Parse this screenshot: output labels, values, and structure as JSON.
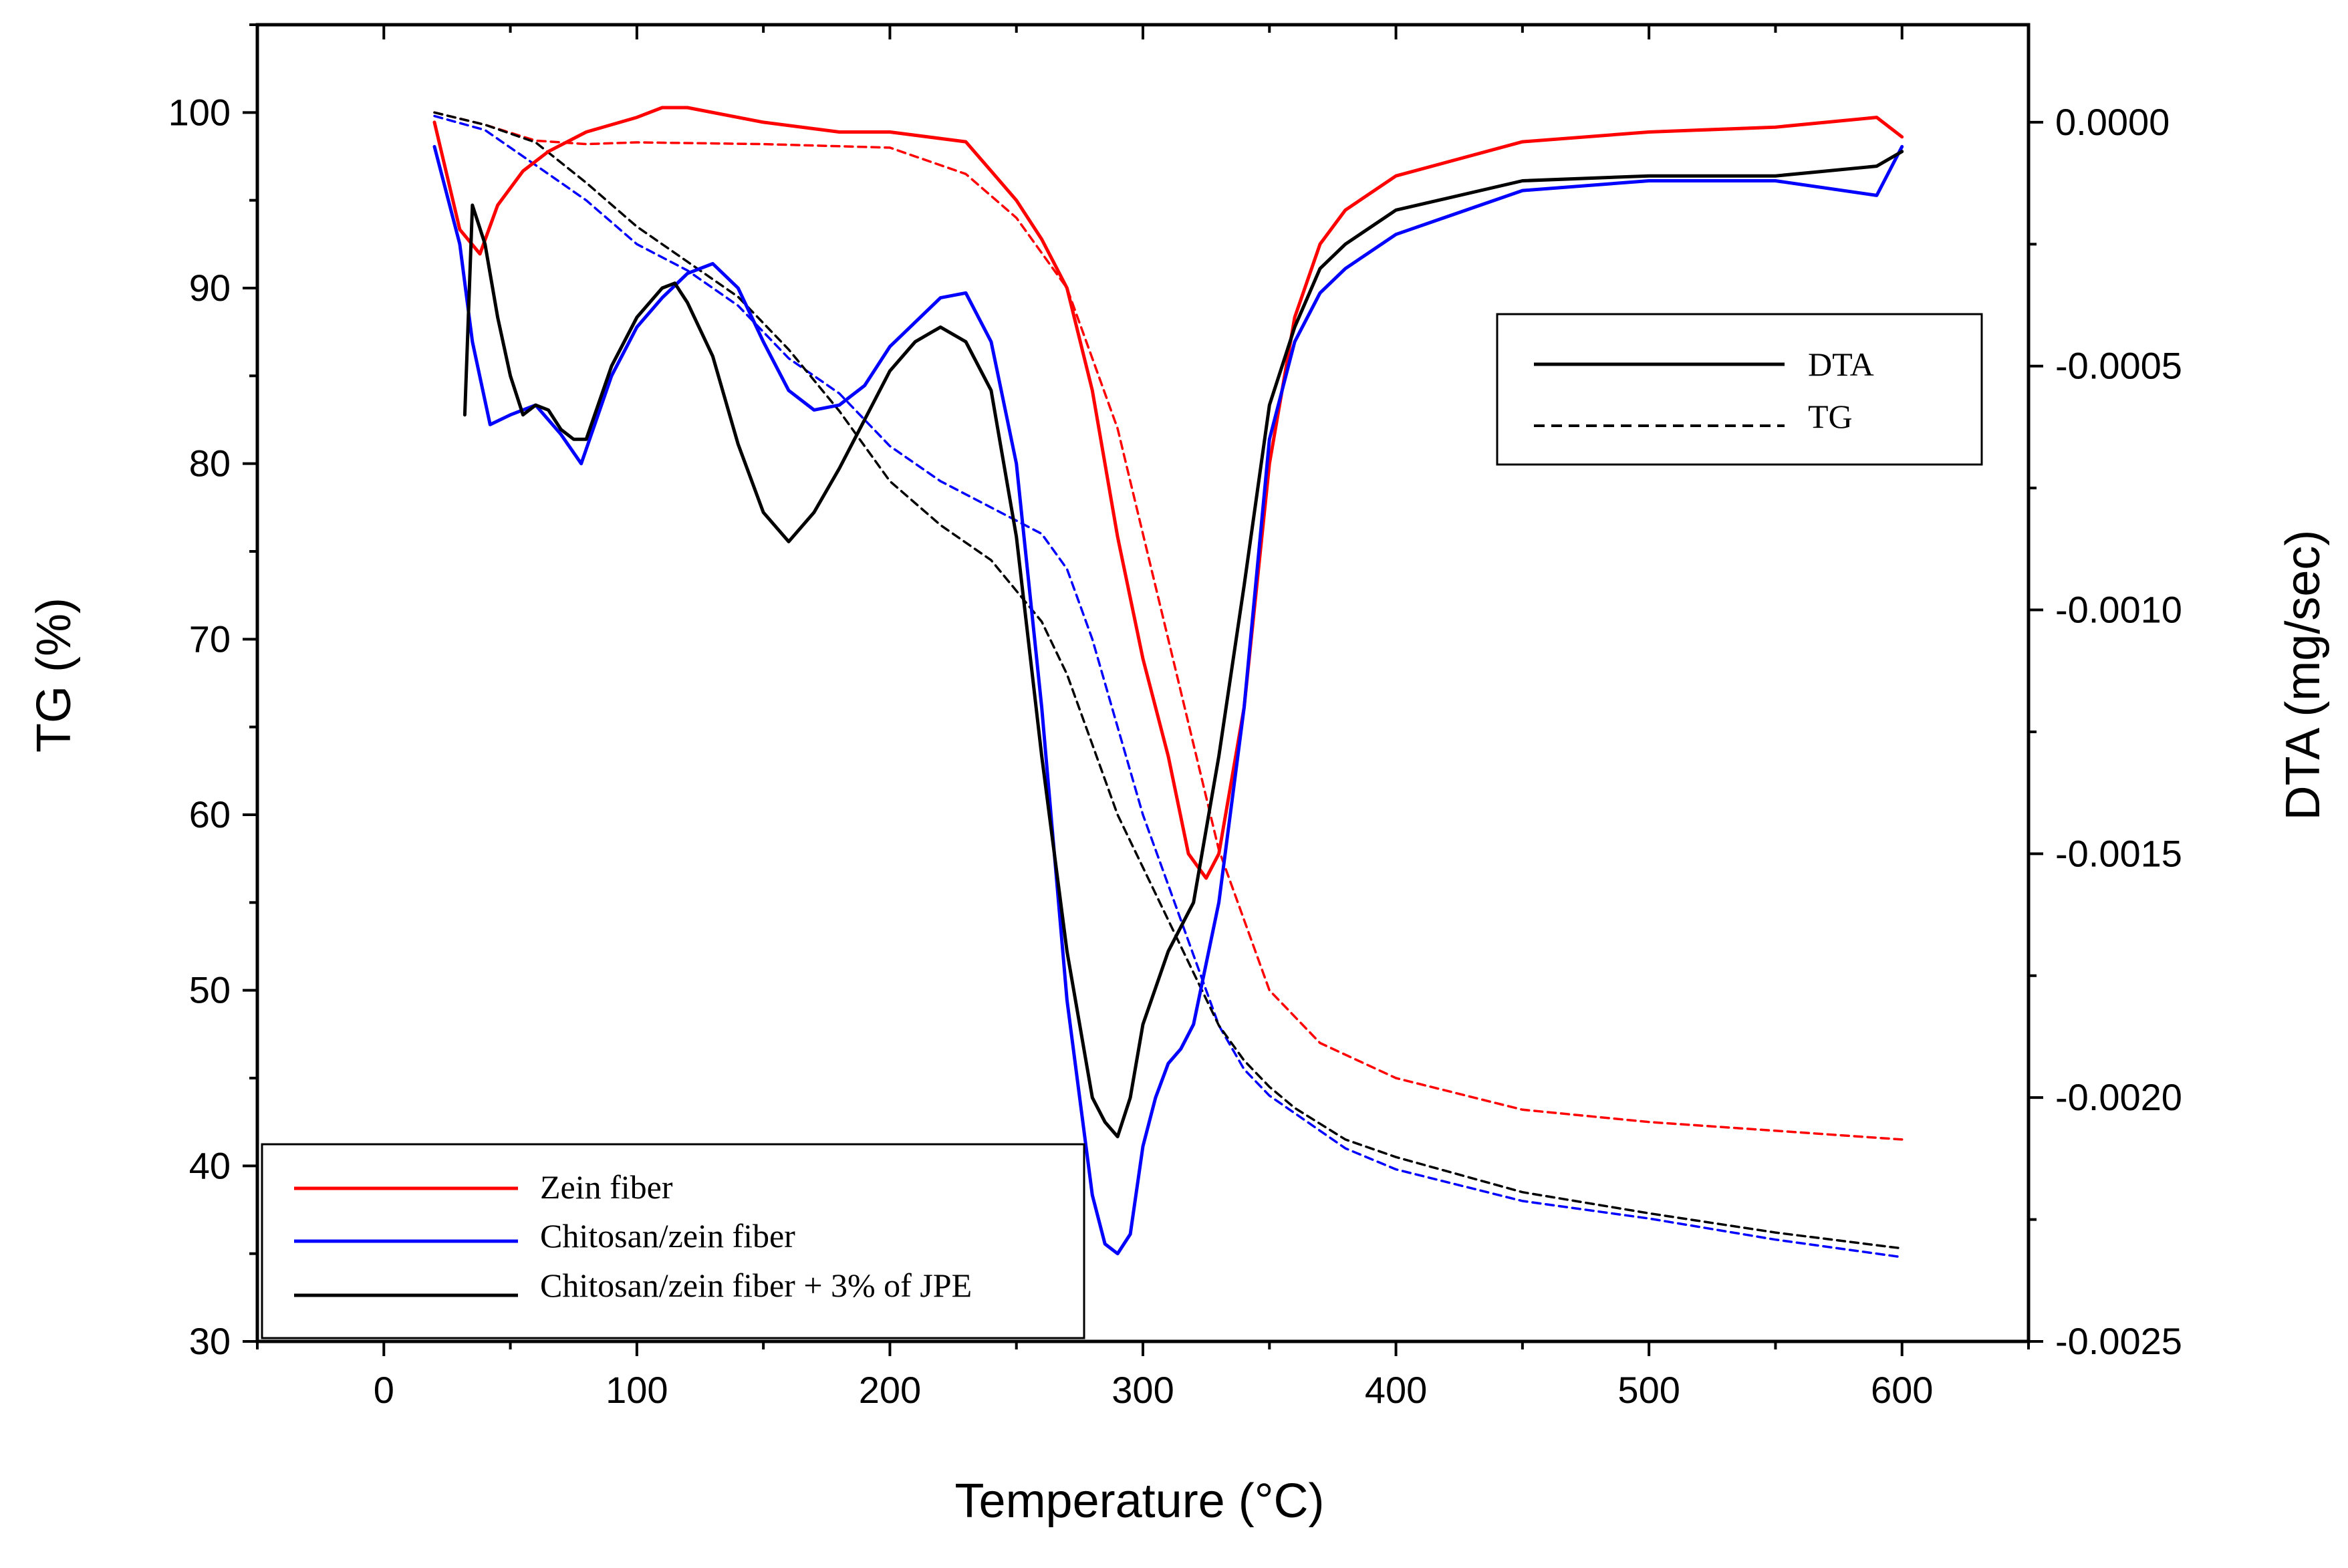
{
  "chart_data": {
    "type": "line",
    "xlabel": "Temperature (°C)",
    "ylabel_left": "TG (%)",
    "ylabel_right": "DTA (mg/sec)",
    "xlim": [
      -50,
      650
    ],
    "ylim_left": [
      30,
      105
    ],
    "ylim_right": [
      -0.0025,
      0.0002
    ],
    "x_ticks": [
      0,
      100,
      200,
      300,
      400,
      500,
      600
    ],
    "x_tick_labels": [
      "0",
      "100",
      "200",
      "300",
      "400",
      "500",
      "600"
    ],
    "y_left_ticks": [
      30,
      40,
      50,
      60,
      70,
      80,
      90,
      100
    ],
    "y_left_tick_labels": [
      "30",
      "40",
      "50",
      "60",
      "70",
      "80",
      "90",
      "100"
    ],
    "y_right_ticks": [
      0.0,
      -0.0005,
      -0.001,
      -0.0015,
      -0.002,
      -0.0025
    ],
    "y_right_tick_labels": [
      "0.0000",
      "-0.0005",
      "-0.0010",
      "-0.0015",
      "-0.0020",
      "-0.0025"
    ],
    "legend_samples": {
      "position": "bottom-left",
      "entries": [
        {
          "label": "Zein fiber",
          "color": "#ff0000"
        },
        {
          "label": "Chitosan/zein fiber",
          "color": "#0000ff"
        },
        {
          "label": "Chitosan/zein fiber + 3% of JPE",
          "color": "#000000"
        }
      ]
    },
    "legend_types": {
      "position": "top-right",
      "entries": [
        {
          "label": "DTA",
          "style": "solid"
        },
        {
          "label": "TG",
          "style": "dashed"
        }
      ]
    },
    "series": [
      {
        "name": "Zein fiber TG",
        "kind": "TG",
        "axis": "left",
        "color": "#ff0000",
        "x": [
          20,
          40,
          60,
          80,
          100,
          150,
          200,
          230,
          250,
          270,
          290,
          310,
          330,
          350,
          370,
          400,
          450,
          500,
          550,
          600
        ],
        "y": [
          100,
          99.3,
          98.4,
          98.2,
          98.3,
          98.2,
          98,
          96.5,
          94,
          90,
          82,
          70,
          58,
          50,
          47,
          45,
          43.2,
          42.5,
          42,
          41.5
        ]
      },
      {
        "name": "Chitosan/zein fiber TG",
        "kind": "TG",
        "axis": "left",
        "color": "#0000ff",
        "x": [
          20,
          40,
          60,
          80,
          100,
          120,
          140,
          160,
          180,
          200,
          220,
          240,
          260,
          270,
          280,
          290,
          300,
          310,
          320,
          330,
          340,
          350,
          360,
          380,
          400,
          450,
          500,
          550,
          600
        ],
        "y": [
          99.8,
          99,
          97,
          95,
          92.5,
          91,
          89,
          86,
          84,
          81,
          79,
          77.5,
          76,
          74,
          70,
          65,
          60,
          56,
          52,
          48,
          45.5,
          44,
          43,
          41,
          39.8,
          38,
          37,
          35.8,
          34.8
        ]
      },
      {
        "name": "Chitosan/zein fiber + 3% of JPE TG",
        "kind": "TG",
        "axis": "left",
        "color": "#000000",
        "x": [
          20,
          40,
          60,
          80,
          100,
          120,
          140,
          160,
          180,
          200,
          220,
          240,
          260,
          270,
          280,
          290,
          300,
          310,
          320,
          330,
          340,
          350,
          360,
          380,
          400,
          450,
          500,
          550,
          600
        ],
        "y": [
          100,
          99.3,
          98.3,
          96,
          93.5,
          91.5,
          89.5,
          86.5,
          83,
          79,
          76.5,
          74.5,
          71,
          68,
          64,
          60,
          57,
          54,
          51,
          48,
          46,
          44.5,
          43.3,
          41.5,
          40.5,
          38.5,
          37.3,
          36.2,
          35.3
        ]
      },
      {
        "name": "Zein fiber DTA",
        "kind": "DTA",
        "axis": "right",
        "color": "#ff0000",
        "x": [
          20,
          30,
          38,
          45,
          55,
          65,
          80,
          100,
          110,
          120,
          150,
          180,
          200,
          230,
          240,
          250,
          260,
          270,
          280,
          290,
          300,
          310,
          318,
          325,
          330,
          340,
          350,
          360,
          370,
          380,
          400,
          450,
          500,
          550,
          590,
          600
        ],
        "y": [
          0.0,
          -0.00022,
          -0.00027,
          -0.00017,
          -0.0001,
          -6e-05,
          -2e-05,
          1e-05,
          3e-05,
          3e-05,
          0.0,
          -2e-05,
          -2e-05,
          -4e-05,
          -0.0001,
          -0.00016,
          -0.00024,
          -0.00034,
          -0.00055,
          -0.00085,
          -0.0011,
          -0.0013,
          -0.0015,
          -0.00155,
          -0.0015,
          -0.0012,
          -0.0007,
          -0.0004,
          -0.00025,
          -0.00018,
          -0.00011,
          -4e-05,
          -2e-05,
          -1e-05,
          1e-05,
          -3e-05
        ]
      },
      {
        "name": "Chitosan/zein fiber DTA",
        "kind": "DTA",
        "axis": "right",
        "color": "#0000ff",
        "x": [
          20,
          30,
          35,
          42,
          50,
          60,
          70,
          78,
          90,
          100,
          110,
          120,
          130,
          140,
          150,
          160,
          170,
          180,
          190,
          200,
          210,
          220,
          230,
          240,
          250,
          260,
          270,
          280,
          285,
          290,
          295,
          300,
          305,
          310,
          315,
          320,
          330,
          340,
          350,
          360,
          370,
          380,
          400,
          450,
          500,
          550,
          590,
          600
        ],
        "y": [
          -5e-05,
          -0.00025,
          -0.00045,
          -0.00062,
          -0.0006,
          -0.00058,
          -0.00064,
          -0.0007,
          -0.00052,
          -0.00042,
          -0.00036,
          -0.00031,
          -0.00029,
          -0.00034,
          -0.00045,
          -0.00055,
          -0.00059,
          -0.00058,
          -0.00054,
          -0.00046,
          -0.00041,
          -0.00036,
          -0.00035,
          -0.00045,
          -0.0007,
          -0.0012,
          -0.0018,
          -0.0022,
          -0.0023,
          -0.00232,
          -0.00228,
          -0.0021,
          -0.002,
          -0.00193,
          -0.0019,
          -0.00185,
          -0.0016,
          -0.0012,
          -0.00065,
          -0.00045,
          -0.00035,
          -0.0003,
          -0.00023,
          -0.00014,
          -0.00012,
          -0.00012,
          -0.00015,
          -5e-05
        ]
      },
      {
        "name": "Chitosan/zein fiber + 3% of JPE DTA",
        "kind": "DTA",
        "axis": "right",
        "color": "#000000",
        "x": [
          32,
          35,
          40,
          45,
          50,
          55,
          60,
          65,
          70,
          75,
          80,
          90,
          100,
          110,
          115,
          120,
          130,
          140,
          150,
          160,
          170,
          180,
          190,
          200,
          210,
          220,
          230,
          240,
          250,
          260,
          270,
          280,
          285,
          290,
          295,
          300,
          310,
          320,
          330,
          340,
          350,
          360,
          370,
          380,
          400,
          450,
          500,
          550,
          590,
          600
        ],
        "y": [
          -0.0006,
          -0.00017,
          -0.00025,
          -0.0004,
          -0.00052,
          -0.0006,
          -0.00058,
          -0.00059,
          -0.00063,
          -0.00065,
          -0.00065,
          -0.0005,
          -0.0004,
          -0.00034,
          -0.00033,
          -0.00037,
          -0.00048,
          -0.00066,
          -0.0008,
          -0.00086,
          -0.0008,
          -0.00071,
          -0.00061,
          -0.00051,
          -0.00045,
          -0.00042,
          -0.00045,
          -0.00055,
          -0.00085,
          -0.0013,
          -0.0017,
          -0.002,
          -0.00205,
          -0.00208,
          -0.002,
          -0.00185,
          -0.0017,
          -0.0016,
          -0.0013,
          -0.00095,
          -0.00058,
          -0.00042,
          -0.0003,
          -0.00025,
          -0.00018,
          -0.00012,
          -0.00011,
          -0.00011,
          -9e-05,
          -6e-05
        ]
      }
    ]
  }
}
